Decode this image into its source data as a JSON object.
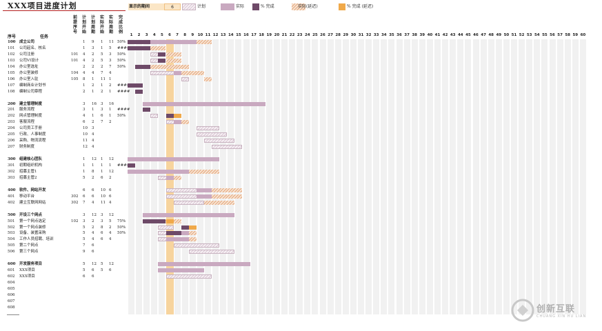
{
  "title": "XXX项目进度计划",
  "display_period_label": "显示的期间",
  "display_period_value": "6",
  "legend": [
    {
      "key": "plan",
      "label": "计划",
      "color": "#d9c8d4"
    },
    {
      "key": "actual",
      "label": "实际",
      "color": "#c9a9c0"
    },
    {
      "key": "pct",
      "label": "% 完成",
      "color": "#6e4a68"
    },
    {
      "key": "late",
      "label": "实际(延迟)",
      "color": "#e3a97f"
    },
    {
      "key": "pctlate",
      "label": "% 完成 (延迟)",
      "color": "#f0a94a"
    }
  ],
  "headers": {
    "seq": "序号",
    "task": "任务",
    "pred": [
      "前",
      "提",
      "序",
      "号"
    ],
    "plan_start": [
      "计",
      "划",
      "开",
      "始"
    ],
    "plan_dur": [
      "计",
      "划",
      "周",
      "期"
    ],
    "act_start": [
      "实",
      "际",
      "开",
      "始"
    ],
    "act_dur": [
      "实",
      "际",
      "周",
      "期"
    ],
    "pct": [
      "完",
      "成",
      "比",
      "例"
    ]
  },
  "days": [
    "1",
    "2",
    "3",
    "4",
    "5",
    "6",
    "7",
    "8",
    "9",
    "10",
    "11",
    "12",
    "13",
    "14",
    "15",
    "16",
    "17",
    "18",
    "19",
    "20",
    "21",
    "22",
    "23",
    "24",
    "25",
    "26",
    "27",
    "28",
    "29",
    "30",
    "31",
    "32",
    "33",
    "34",
    "35",
    "36",
    "37",
    "38",
    "39",
    "40",
    "41",
    "42",
    "43",
    "44",
    "45",
    "46",
    "47",
    "48",
    "49",
    "50",
    "51",
    "52",
    "53",
    "54",
    "55",
    "56",
    "57",
    "58",
    "59",
    "60"
  ],
  "rows": [
    {
      "id": "100",
      "name": "成立公司",
      "pred": "",
      "ps": "1",
      "pd": "9",
      "as": "1",
      "ad": "11",
      "pct": "50%",
      "bold": true,
      "pstart": 1,
      "plen": 9,
      "astart": 1,
      "alen": 11,
      "pctlen": 3
    },
    {
      "id": "101",
      "name": "公司起名、核名",
      "pred": "",
      "ps": "1",
      "pd": "3",
      "as": "1",
      "ad": "5",
      "pct": "####",
      "pstart": 1,
      "plen": 3,
      "astart": 1,
      "alen": 5,
      "pctlen": 3
    },
    {
      "id": "102",
      "name": "公司注册",
      "pred": "101",
      "ps": "4",
      "pd": "2",
      "as": "5",
      "ad": "3",
      "pct": "50%",
      "pstart": 4,
      "plen": 2,
      "astart": 5,
      "alen": 3,
      "pctlen": 1
    },
    {
      "id": "103",
      "name": "公司VI设计",
      "pred": "101",
      "ps": "4",
      "pd": "2",
      "as": "5",
      "ad": "3",
      "pct": "50%",
      "pstart": 4,
      "plen": 2,
      "astart": 5,
      "alen": 3,
      "pctlen": 1
    },
    {
      "id": "104",
      "name": "办公室选址",
      "pred": "",
      "ps": "2",
      "pd": "2",
      "as": "2",
      "ad": "7",
      "pct": "50%",
      "pstart": 2,
      "plen": 2,
      "astart": 2,
      "alen": 7,
      "pctlen": 2
    },
    {
      "id": "105",
      "name": "办公室装修",
      "pred": "104",
      "ps": "4",
      "pd": "4",
      "as": "7",
      "ad": "4",
      "pct": "",
      "pstart": 4,
      "plen": 4,
      "astart": 7,
      "alen": 4,
      "pctlen": 0
    },
    {
      "id": "106",
      "name": "办公室入驻",
      "pred": "105",
      "ps": "8",
      "pd": "1",
      "as": "11",
      "ad": "1",
      "pct": "",
      "pstart": 8,
      "plen": 1,
      "astart": 11,
      "alen": 1,
      "pctlen": 0
    },
    {
      "id": "107",
      "name": "编制商业计划书",
      "pred": "",
      "ps": "1",
      "pd": "2",
      "as": "1",
      "ad": "2",
      "pct": "####",
      "pstart": 1,
      "plen": 2,
      "astart": 1,
      "alen": 2,
      "pctlen": 2
    },
    {
      "id": "108",
      "name": "编制公司章程",
      "pred": "",
      "ps": "2",
      "pd": "1",
      "as": "2",
      "ad": "1",
      "pct": "####",
      "pstart": 2,
      "plen": 1,
      "astart": 2,
      "alen": 1,
      "pctlen": 1
    },
    {
      "id": "",
      "name": "",
      "pred": "",
      "ps": "",
      "pd": "",
      "as": "",
      "ad": "",
      "pct": ""
    },
    {
      "id": "200",
      "name": "建立管理制度",
      "pred": "",
      "ps": "3",
      "pd": "16",
      "as": "3",
      "ad": "16",
      "pct": "",
      "bold": true,
      "pstart": 3,
      "plen": 16,
      "astart": 3,
      "alen": 16,
      "pctlen": 0
    },
    {
      "id": "201",
      "name": "服务流程",
      "pred": "",
      "ps": "3",
      "pd": "1",
      "as": "3",
      "ad": "1",
      "pct": "####",
      "pstart": 3,
      "plen": 1,
      "astart": 3,
      "alen": 1,
      "pctlen": 1
    },
    {
      "id": "202",
      "name": "网点管理制度",
      "pred": "",
      "ps": "4",
      "pd": "1",
      "as": "6",
      "ad": "1",
      "pct": "50%",
      "pstart": 4,
      "plen": 1,
      "astart": 6,
      "alen": 1,
      "pctlen": 1,
      "pctlate": true
    },
    {
      "id": "203",
      "name": "客服流程",
      "pred": "",
      "ps": "6",
      "pd": "2",
      "as": "7",
      "ad": "2",
      "pct": "",
      "pstart": 6,
      "plen": 2,
      "astart": 7,
      "alen": 2,
      "pctlen": 0
    },
    {
      "id": "204",
      "name": "公司员工手册",
      "pred": "",
      "ps": "10",
      "pd": "3",
      "as": "",
      "ad": "",
      "pct": "",
      "pstart": 10,
      "plen": 3
    },
    {
      "id": "205",
      "name": "行政、人事制度",
      "pred": "",
      "ps": "10",
      "pd": "4",
      "as": "",
      "ad": "",
      "pct": "",
      "pstart": 10,
      "plen": 4
    },
    {
      "id": "206",
      "name": "采购、物流流程",
      "pred": "",
      "ps": "11",
      "pd": "4",
      "as": "",
      "ad": "",
      "pct": "",
      "pstart": 11,
      "plen": 4
    },
    {
      "id": "207",
      "name": "财务制度",
      "pred": "",
      "ps": "12",
      "pd": "4",
      "as": "",
      "ad": "",
      "pct": "",
      "pstart": 12,
      "plen": 4
    },
    {
      "id": "",
      "name": "",
      "pred": "",
      "ps": "",
      "pd": "",
      "as": "",
      "ad": "",
      "pct": ""
    },
    {
      "id": "300",
      "name": "组建核心团队",
      "pred": "",
      "ps": "1",
      "pd": "12",
      "as": "1",
      "ad": "12",
      "pct": "",
      "bold": true,
      "pstart": 1,
      "plen": 12,
      "astart": 1,
      "alen": 12,
      "pctlen": 0
    },
    {
      "id": "301",
      "name": "初期组织机构",
      "pred": "",
      "ps": "1",
      "pd": "1",
      "as": "1",
      "ad": "1",
      "pct": "####",
      "pstart": 1,
      "plen": 1,
      "astart": 1,
      "alen": 1,
      "pctlen": 1
    },
    {
      "id": "302",
      "name": "招募主管1",
      "pred": "",
      "ps": "1",
      "pd": "8",
      "as": "1",
      "ad": "12",
      "pct": "",
      "pstart": 1,
      "plen": 8,
      "astart": 1,
      "alen": 12,
      "pctlen": 0
    },
    {
      "id": "303",
      "name": "招募主管2",
      "pred": "",
      "ps": "5",
      "pd": "2",
      "as": "6",
      "ad": "2",
      "pct": "",
      "pstart": 5,
      "plen": 2,
      "astart": 6,
      "alen": 2,
      "pctlen": 0
    },
    {
      "id": "",
      "name": "",
      "pred": "",
      "ps": "",
      "pd": "",
      "as": "",
      "ad": "",
      "pct": ""
    },
    {
      "id": "400",
      "name": "软件、网站开发",
      "pred": "",
      "ps": "6",
      "pd": "6",
      "as": "10",
      "ad": "6",
      "pct": "",
      "bold": true,
      "pstart": 6,
      "plen": 6,
      "astart": 10,
      "alen": 6,
      "pctlen": 0
    },
    {
      "id": "401",
      "name": "移动平台",
      "pred": "302",
      "ps": "6",
      "pd": "6",
      "as": "10",
      "ad": "6",
      "pct": "",
      "pstart": 6,
      "plen": 6,
      "astart": 10,
      "alen": 6,
      "pctlen": 0
    },
    {
      "id": "402",
      "name": "建立互联网网站",
      "pred": "302",
      "ps": "7",
      "pd": "4",
      "as": "11",
      "ad": "4",
      "pct": "",
      "pstart": 7,
      "plen": 4,
      "astart": 11,
      "alen": 4,
      "pctlen": 0
    },
    {
      "id": "",
      "name": "",
      "pred": "",
      "ps": "",
      "pd": "",
      "as": "",
      "ad": "",
      "pct": ""
    },
    {
      "id": "500",
      "name": "开设三个网点",
      "pred": "",
      "ps": "3",
      "pd": "12",
      "as": "3",
      "ad": "12",
      "pct": "",
      "bold": true,
      "pstart": 3,
      "plen": 12,
      "astart": 3,
      "alen": 12,
      "pctlen": 0
    },
    {
      "id": "501",
      "name": "第一个网点选定",
      "pred": "102",
      "ps": "3",
      "pd": "2",
      "as": "3",
      "ad": "5",
      "pct": "75%",
      "pstart": 3,
      "plen": 2,
      "astart": 3,
      "alen": 5,
      "pctlen": 3,
      "pctlate": true
    },
    {
      "id": "502",
      "name": "第一个网点装修",
      "pred": "",
      "ps": "5",
      "pd": "2",
      "as": "8",
      "ad": "2",
      "pct": "50%",
      "pstart": 5,
      "plen": 2,
      "astart": 8,
      "alen": 2,
      "pctlen": 1,
      "pctlate": true
    },
    {
      "id": "503",
      "name": "设备、装置采购",
      "pred": "",
      "ps": "5",
      "pd": "4",
      "as": "6",
      "ad": "4",
      "pct": "50%",
      "pstart": 5,
      "plen": 4,
      "astart": 6,
      "alen": 4,
      "pctlen": 2
    },
    {
      "id": "504",
      "name": "工作人员招聘、培训",
      "pred": "",
      "ps": "5",
      "pd": "4",
      "as": "6",
      "ad": "4",
      "pct": "",
      "pstart": 5,
      "plen": 4,
      "astart": 6,
      "alen": 4,
      "pctlen": 0
    },
    {
      "id": "505",
      "name": "第二个网点",
      "pred": "",
      "ps": "7",
      "pd": "6",
      "as": "",
      "ad": "",
      "pct": "",
      "pstart": 7,
      "plen": 6
    },
    {
      "id": "506",
      "name": "第三个网点",
      "pred": "",
      "ps": "9",
      "pd": "6",
      "as": "",
      "ad": "",
      "pct": "",
      "pstart": 9,
      "plen": 6
    },
    {
      "id": "",
      "name": "",
      "pred": "",
      "ps": "",
      "pd": "",
      "as": "",
      "ad": "",
      "pct": ""
    },
    {
      "id": "600",
      "name": "开发服务项目",
      "pred": "",
      "ps": "5",
      "pd": "12",
      "as": "5",
      "ad": "12",
      "pct": "",
      "bold": true,
      "pstart": 5,
      "plen": 12,
      "astart": 5,
      "alen": 12,
      "pctlen": 0
    },
    {
      "id": "601",
      "name": "XXX项目",
      "pred": "",
      "ps": "5",
      "pd": "6",
      "as": "5",
      "ad": "6",
      "pct": "",
      "pstart": 5,
      "plen": 6,
      "astart": 5,
      "alen": 6,
      "pctlen": 0
    },
    {
      "id": "602",
      "name": "XXX项目",
      "pred": "",
      "ps": "6",
      "pd": "6",
      "as": "",
      "ad": "",
      "pct": "",
      "pstart": 6,
      "plen": 6
    },
    {
      "id": "604",
      "name": "",
      "pred": "",
      "ps": "",
      "pd": "",
      "as": "",
      "ad": "",
      "pct": ""
    },
    {
      "id": "605",
      "name": "",
      "pred": "",
      "ps": "",
      "pd": "",
      "as": "",
      "ad": "",
      "pct": ""
    },
    {
      "id": "606",
      "name": "",
      "pred": "",
      "ps": "",
      "pd": "",
      "as": "",
      "ad": "",
      "pct": ""
    },
    {
      "id": "607",
      "name": "",
      "pred": "",
      "ps": "",
      "pd": "",
      "as": "",
      "ad": "",
      "pct": ""
    },
    {
      "id": "608",
      "name": "",
      "pred": "",
      "ps": "",
      "pd": "",
      "as": "",
      "ad": "",
      "pct": ""
    }
  ],
  "watermark": {
    "name": "创新互联",
    "sub": "CHUANG XIN HU LIAN"
  }
}
